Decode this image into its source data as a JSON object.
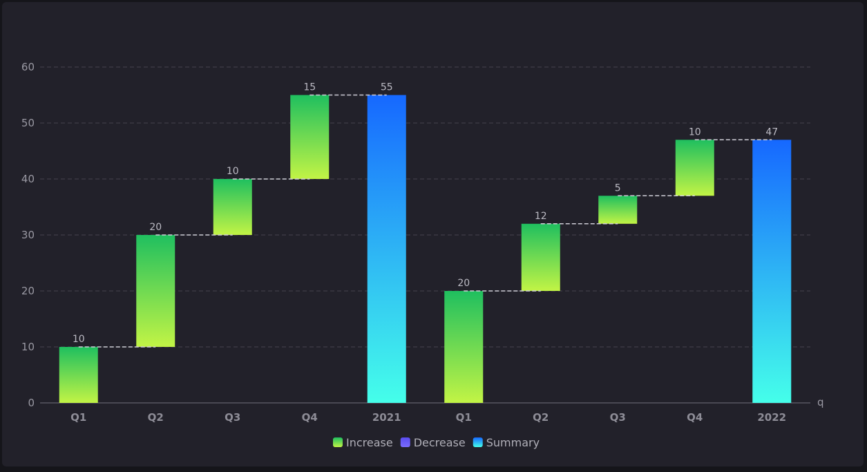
{
  "chart_data": {
    "type": "waterfall",
    "categories": [
      "Q1",
      "Q2",
      "Q3",
      "Q4",
      "2021",
      "Q1",
      "Q2",
      "Q3",
      "Q4",
      "2022"
    ],
    "kinds": [
      "increase",
      "increase",
      "increase",
      "increase",
      "summary",
      "increase",
      "increase",
      "increase",
      "increase",
      "summary"
    ],
    "values": [
      10,
      20,
      10,
      15,
      55,
      20,
      12,
      5,
      10,
      47
    ],
    "xlabel": "q",
    "ylabel": "",
    "ylim": [
      0,
      60
    ],
    "yticks": [
      0,
      10,
      20,
      30,
      40,
      50,
      60
    ],
    "grid": true,
    "legend": {
      "position": "bottom",
      "items": [
        {
          "name": "Increase",
          "colors": [
            "#1fbf5f",
            "#c2f445"
          ]
        },
        {
          "name": "Decrease",
          "colors": [
            "#5a4cf0",
            "#7a6cff"
          ]
        },
        {
          "name": "Summary",
          "colors": [
            "#1668ff",
            "#45ffea"
          ]
        }
      ]
    },
    "colors": {
      "increase_top": "#1fbf5f",
      "increase_bottom": "#c2f445",
      "summary_top": "#1668ff",
      "summary_bottom": "#45ffea"
    }
  }
}
